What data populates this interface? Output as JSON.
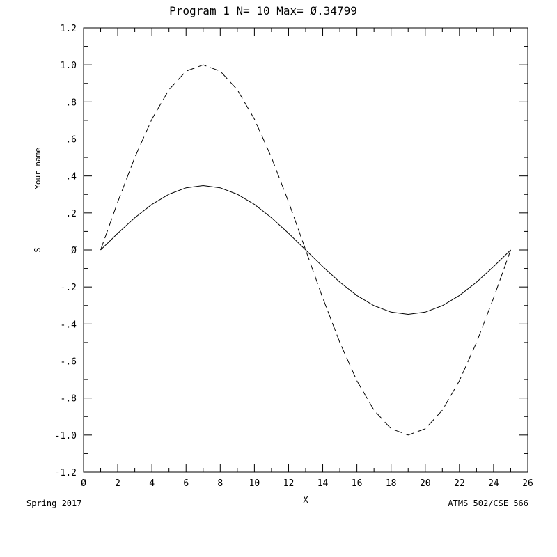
{
  "chart_data": {
    "type": "line",
    "title": "Program 1  N=  10 Max= Ø.34799",
    "xlabel": "X",
    "ylabel_top": "Your name",
    "ylabel_symbol": "S",
    "footer_left": "Spring 2017",
    "footer_right": "ATMS 502/CSE 566",
    "xlim": [
      0,
      26
    ],
    "ylim": [
      -1.2,
      1.2
    ],
    "grid": false,
    "x_ticks": [
      0,
      2,
      4,
      6,
      8,
      10,
      12,
      14,
      16,
      18,
      20,
      22,
      24,
      26
    ],
    "x_tick_labels": [
      "Ø",
      "2",
      "4",
      "6",
      "8",
      "10",
      "12",
      "14",
      "16",
      "18",
      "20",
      "22",
      "24",
      "26"
    ],
    "y_ticks": [
      1.2,
      1.0,
      0.8,
      0.6,
      0.4,
      0.2,
      0,
      -0.2,
      -0.4,
      -0.6,
      -0.8,
      -1.0,
      -1.2
    ],
    "y_tick_labels": [
      "1.2",
      "1.0",
      ".8",
      ".6",
      ".4",
      ".2",
      "Ø",
      "-.2",
      "-.4",
      "-.6",
      "-.8",
      "-1.0",
      "-1.2"
    ],
    "x": [
      1,
      2,
      3,
      4,
      5,
      6,
      7,
      8,
      9,
      10,
      11,
      12,
      13,
      14,
      15,
      16,
      17,
      18,
      19,
      20,
      21,
      22,
      23,
      24,
      25
    ],
    "series": [
      {
        "style": "solid",
        "color": "#000000",
        "values": [
          0.0,
          0.09,
          0.174,
          0.246,
          0.301,
          0.336,
          0.348,
          0.336,
          0.301,
          0.246,
          0.174,
          0.09,
          0.0,
          -0.09,
          -0.174,
          -0.246,
          -0.301,
          -0.336,
          -0.348,
          -0.336,
          -0.301,
          -0.246,
          -0.174,
          -0.09,
          0.0
        ]
      },
      {
        "style": "dashed",
        "color": "#000000",
        "values": [
          0.0,
          0.259,
          0.5,
          0.707,
          0.866,
          0.966,
          1.0,
          0.966,
          0.866,
          0.707,
          0.5,
          0.259,
          0.0,
          -0.259,
          -0.5,
          -0.707,
          -0.866,
          -0.966,
          -1.0,
          -0.966,
          -0.866,
          -0.707,
          -0.5,
          -0.259,
          0.0
        ]
      }
    ]
  }
}
